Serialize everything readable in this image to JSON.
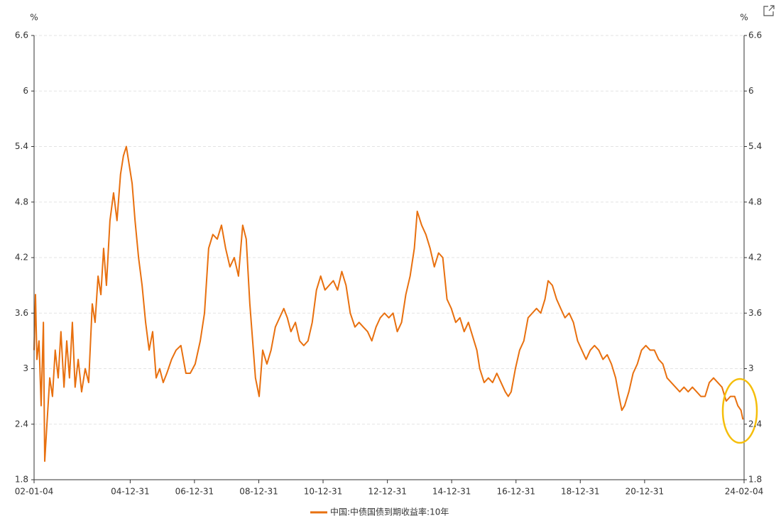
{
  "chart_data": {
    "type": "line",
    "y_unit": "%",
    "xlim": [
      "02-01-04",
      "24-02-04"
    ],
    "xticks": [
      "02-01-04",
      "04-12-31",
      "06-12-31",
      "08-12-31",
      "10-12-31",
      "12-12-31",
      "14-12-31",
      "16-12-31",
      "18-12-31",
      "20-12-31",
      "24-02-04"
    ],
    "ylim": [
      1.8,
      6.6
    ],
    "yticks": [
      1.8,
      2.4,
      3,
      3.6,
      4.2,
      4.8,
      5.4,
      6,
      6.6
    ],
    "grid": true,
    "legend": "bottom",
    "x": [
      "02-01-04",
      "02-01-20",
      "02-02-05",
      "02-03-01",
      "02-03-25",
      "02-04-20",
      "02-05-05",
      "02-05-30",
      "02-07-01",
      "02-08-01",
      "02-09-01",
      "02-10-05",
      "02-11-05",
      "02-12-10",
      "03-01-10",
      "03-02-10",
      "03-03-15",
      "03-04-15",
      "03-05-20",
      "03-06-28",
      "03-08-08",
      "03-09-16",
      "03-10-27",
      "03-11-28",
      "04-01-01",
      "04-02-02",
      "04-03-04",
      "04-04-05",
      "04-05-15",
      "04-06-25",
      "04-08-03",
      "04-09-12",
      "04-10-15",
      "04-11-17",
      "04-12-20",
      "05-01-22",
      "05-02-24",
      "05-04-05",
      "05-05-15",
      "05-06-24",
      "05-08-03",
      "05-09-12",
      "05-10-22",
      "05-12-01",
      "06-01-10",
      "06-02-20",
      "06-04-15",
      "06-06-05",
      "06-07-30",
      "06-09-25",
      "06-11-13",
      "07-01-08",
      "07-03-07",
      "07-04-24",
      "07-06-10",
      "07-07-28",
      "07-09-16",
      "07-11-03",
      "07-12-20",
      "08-02-07",
      "08-03-27",
      "08-05-14",
      "08-07-01",
      "08-08-10",
      "08-09-20",
      "08-10-22",
      "08-11-23",
      "09-01-04",
      "09-02-13",
      "09-04-02",
      "09-05-19",
      "09-07-07",
      "09-08-24",
      "09-10-11",
      "09-11-20",
      "09-12-31",
      "10-02-20",
      "10-04-08",
      "10-05-26",
      "10-07-13",
      "10-08-30",
      "10-10-17",
      "10-12-04",
      "11-01-22",
      "11-03-10",
      "11-04-27",
      "11-06-14",
      "11-08-01",
      "11-09-18",
      "11-11-05",
      "11-12-28",
      "12-02-13",
      "12-04-01",
      "12-05-20",
      "12-07-07",
      "12-08-24",
      "12-10-11",
      "12-11-28",
      "13-01-16",
      "13-03-05",
      "13-04-22",
      "13-06-10",
      "13-07-28",
      "13-09-15",
      "13-11-02",
      "13-12-05",
      "14-01-24",
      "14-03-13",
      "14-04-30",
      "14-06-17",
      "14-08-04",
      "14-09-21",
      "14-11-08",
      "14-12-27",
      "15-02-15",
      "15-04-04",
      "15-05-22",
      "15-07-09",
      "15-08-26",
      "15-10-13",
      "15-11-15",
      "16-01-04",
      "16-02-21",
      "16-04-09",
      "16-05-27",
      "16-07-14",
      "16-08-31",
      "16-10-04",
      "16-11-06",
      "16-12-24",
      "17-02-10",
      "17-03-30",
      "17-05-17",
      "17-07-04",
      "17-08-21",
      "17-10-08",
      "17-11-25",
      "17-12-31",
      "18-02-17",
      "18-04-06",
      "18-05-23",
      "18-07-10",
      "18-08-27",
      "18-10-14",
      "18-12-01",
      "19-01-18",
      "19-03-07",
      "19-04-24",
      "19-06-11",
      "19-07-29",
      "19-09-15",
      "19-11-02",
      "19-12-20",
      "20-02-06",
      "20-03-15",
      "20-04-16",
      "20-05-18",
      "20-07-05",
      "20-08-22",
      "20-10-09",
      "20-11-26",
      "21-01-14",
      "21-03-04",
      "21-04-21",
      "21-06-08",
      "21-07-26",
      "21-09-12",
      "21-10-30",
      "21-12-17",
      "22-02-03",
      "22-03-23",
      "22-05-10",
      "22-06-27",
      "22-08-14",
      "22-10-01",
      "22-11-18",
      "23-01-05",
      "23-02-22",
      "23-04-11",
      "23-05-29",
      "23-07-16",
      "23-09-02",
      "23-10-20",
      "23-11-25",
      "23-12-31",
      "24-01-22"
    ],
    "series": [
      {
        "name": "中国:中债国债到期收益率:10年",
        "color": "#e8700f",
        "values": [
          3.2,
          3.8,
          3.1,
          3.3,
          2.6,
          3.5,
          2.0,
          2.4,
          2.9,
          2.7,
          3.2,
          2.9,
          3.4,
          2.8,
          3.3,
          2.9,
          3.5,
          2.8,
          3.1,
          2.75,
          3.0,
          2.85,
          3.7,
          3.5,
          4.0,
          3.8,
          4.3,
          3.9,
          4.6,
          4.9,
          4.6,
          5.1,
          5.3,
          5.4,
          5.2,
          5.0,
          4.6,
          4.2,
          3.9,
          3.5,
          3.2,
          3.4,
          2.9,
          3.0,
          2.85,
          2.95,
          3.1,
          3.2,
          3.25,
          2.95,
          2.95,
          3.05,
          3.3,
          3.6,
          4.3,
          4.45,
          4.4,
          4.55,
          4.3,
          4.1,
          4.2,
          4.0,
          4.55,
          4.4,
          3.7,
          3.3,
          2.9,
          2.7,
          3.2,
          3.05,
          3.2,
          3.45,
          3.55,
          3.65,
          3.55,
          3.4,
          3.5,
          3.3,
          3.25,
          3.3,
          3.5,
          3.85,
          4.0,
          3.85,
          3.9,
          3.95,
          3.85,
          4.05,
          3.9,
          3.6,
          3.45,
          3.5,
          3.45,
          3.4,
          3.3,
          3.45,
          3.55,
          3.6,
          3.55,
          3.6,
          3.4,
          3.5,
          3.8,
          4.0,
          4.3,
          4.7,
          4.55,
          4.45,
          4.3,
          4.1,
          4.25,
          4.2,
          3.75,
          3.65,
          3.5,
          3.55,
          3.4,
          3.5,
          3.35,
          3.2,
          3.0,
          2.85,
          2.9,
          2.85,
          2.95,
          2.85,
          2.75,
          2.7,
          2.75,
          3.0,
          3.2,
          3.3,
          3.55,
          3.6,
          3.65,
          3.6,
          3.75,
          3.95,
          3.9,
          3.75,
          3.65,
          3.55,
          3.6,
          3.5,
          3.3,
          3.2,
          3.1,
          3.2,
          3.25,
          3.2,
          3.1,
          3.15,
          3.05,
          2.9,
          2.7,
          2.55,
          2.6,
          2.75,
          2.95,
          3.05,
          3.2,
          3.25,
          3.2,
          3.2,
          3.1,
          3.05,
          2.9,
          2.85,
          2.8,
          2.75,
          2.8,
          2.75,
          2.8,
          2.75,
          2.7,
          2.7,
          2.85,
          2.9,
          2.85,
          2.8,
          2.65,
          2.7,
          2.7,
          2.6,
          2.55,
          2.45
        ]
      }
    ]
  }
}
